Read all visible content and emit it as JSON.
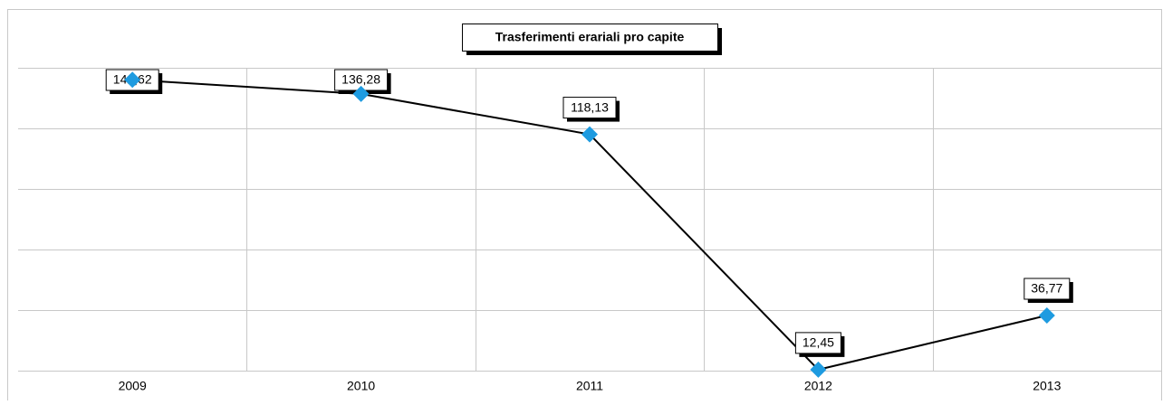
{
  "chart_data": {
    "type": "line",
    "title": "Trasferimenti erariali pro capite",
    "categories": [
      "2009",
      "2010",
      "2011",
      "2012",
      "2013"
    ],
    "series": [
      {
        "name": "Trasferimenti erariali pro capite",
        "color": "#000000",
        "marker_color": "#1e9be0",
        "values": [
          142.62,
          136.28,
          118.13,
          12.45,
          36.77
        ],
        "value_labels": [
          "142,62",
          "136,28",
          "118,13",
          "12,45",
          "36,77"
        ]
      }
    ],
    "ylim": [
      12,
      148
    ],
    "yticks": [
      12,
      39.2,
      66.4,
      93.6,
      120.8,
      148
    ],
    "grid": true
  }
}
